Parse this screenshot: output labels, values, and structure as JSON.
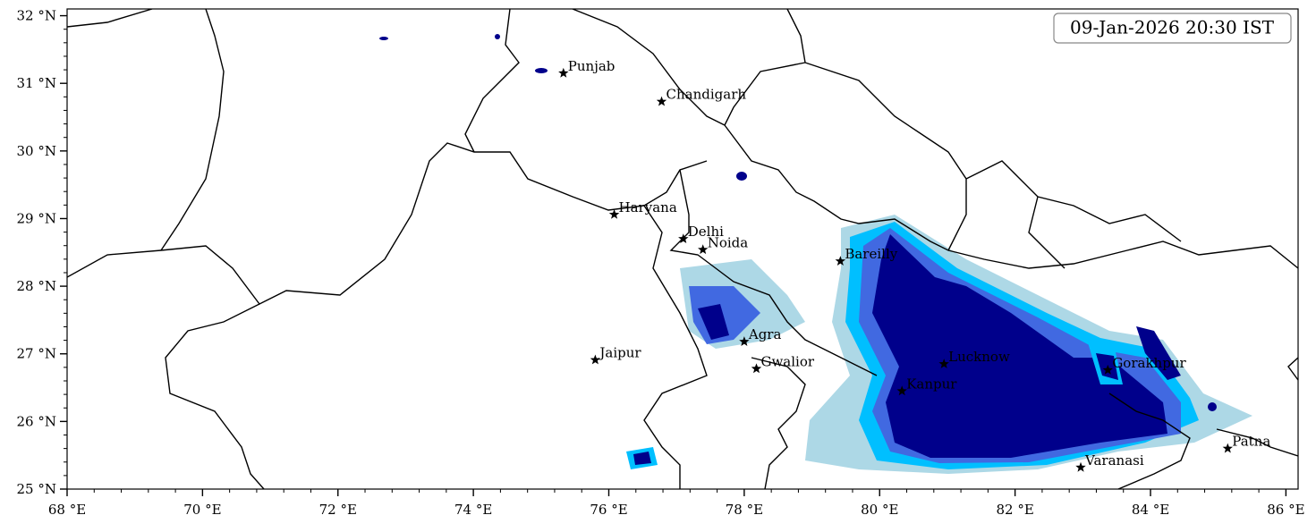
{
  "chart_data": {
    "type": "map",
    "title": "09-Jan-2026 20:30 IST",
    "xlim": [
      68,
      86.18
    ],
    "ylim": [
      25,
      32.1
    ],
    "xticks": [
      {
        "value": 68,
        "label": "68 °E"
      },
      {
        "value": 70,
        "label": "70 °E"
      },
      {
        "value": 72,
        "label": "72 °E"
      },
      {
        "value": 74,
        "label": "74 °E"
      },
      {
        "value": 76,
        "label": "76 °E"
      },
      {
        "value": 78,
        "label": "78 °E"
      },
      {
        "value": 80,
        "label": "80 °E"
      },
      {
        "value": 82,
        "label": "82 °E"
      },
      {
        "value": 84,
        "label": "84 °E"
      },
      {
        "value": 86,
        "label": "86 °E"
      }
    ],
    "yticks": [
      {
        "value": 25,
        "label": "25 °N"
      },
      {
        "value": 26,
        "label": "26 °N"
      },
      {
        "value": 27,
        "label": "27 °N"
      },
      {
        "value": 28,
        "label": "28 °N"
      },
      {
        "value": 29,
        "label": "29 °N"
      },
      {
        "value": 30,
        "label": "30 °N"
      },
      {
        "value": 31,
        "label": "31 °N"
      },
      {
        "value": 32,
        "label": "32 °N"
      }
    ],
    "cities": {
      "names": [
        "Punjab",
        "Chandigarh",
        "Haryana",
        "Delhi",
        "Noida",
        "Bareilly",
        "Agra",
        "Jaipur",
        "Gwalior",
        "Lucknow",
        "Kanpur",
        "Gorakhpur",
        "Varanasi",
        "Patna"
      ],
      "lon": [
        75.33,
        76.78,
        76.08,
        77.1,
        77.39,
        79.42,
        78.0,
        75.8,
        78.18,
        80.95,
        80.33,
        83.37,
        82.97,
        85.14
      ],
      "lat": [
        31.15,
        30.73,
        29.06,
        28.7,
        28.54,
        28.37,
        27.18,
        26.91,
        26.78,
        26.85,
        26.45,
        26.76,
        25.32,
        25.6
      ]
    }
  }
}
